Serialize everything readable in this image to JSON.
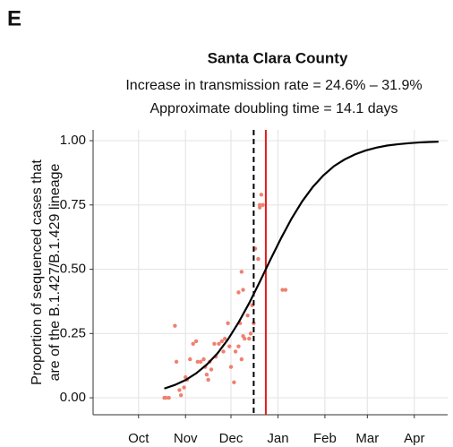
{
  "chart_data": {
    "type": "scatter",
    "panel_label": "E",
    "title": "Santa Clara County",
    "subtitle": [
      "Increase in transmission rate = 24.6% – 31.9%",
      "Approximate doubling time = 14.1 days"
    ],
    "y_label": [
      "Proportion of sequenced cases that",
      "are of the B.1.427/B.1.429 lineage"
    ],
    "xlim": [
      -30,
      204
    ],
    "ylim": [
      -0.066,
      1.042
    ],
    "xticks": [
      {
        "value": 0,
        "label": "Oct"
      },
      {
        "value": 31,
        "label": "Nov"
      },
      {
        "value": 61,
        "label": "Dec"
      },
      {
        "value": 92,
        "label": "Jan"
      },
      {
        "value": 123,
        "label": "Feb"
      },
      {
        "value": 151,
        "label": "Mar"
      },
      {
        "value": 182,
        "label": "Apr"
      }
    ],
    "yticks": [
      {
        "value": 0,
        "label": "0.00"
      },
      {
        "value": 0.25,
        "label": "0.25"
      },
      {
        "value": 0.5,
        "label": "0.50"
      },
      {
        "value": 0.75,
        "label": "0.75"
      },
      {
        "value": 1,
        "label": "1.00"
      }
    ],
    "grid": true,
    "points": {
      "color": "#f08070",
      "x": [
        17,
        18,
        20,
        24,
        25,
        27,
        28,
        30,
        31,
        32,
        34,
        36,
        38,
        39,
        41,
        43,
        44,
        45,
        46,
        47,
        48,
        50,
        51,
        53,
        55,
        56,
        57,
        59,
        60,
        61,
        63,
        64,
        66,
        67,
        68,
        69,
        70,
        72,
        73,
        74,
        75,
        66,
        68,
        69,
        76,
        77,
        79,
        80,
        81,
        82,
        80,
        95,
        97
      ],
      "values": [
        0,
        0,
        0,
        0.28,
        0.14,
        0.03,
        0.01,
        0.04,
        0.08,
        0.07,
        0.15,
        0.21,
        0.22,
        0.14,
        0.14,
        0.15,
        0.12,
        0.09,
        0.07,
        0.14,
        0.11,
        0.21,
        0.16,
        0.21,
        0.22,
        0.18,
        0.23,
        0.29,
        0.2,
        0.12,
        0.06,
        0.18,
        0.2,
        0.29,
        0.15,
        0.24,
        0.23,
        0.32,
        0.23,
        0.25,
        0.36,
        0.41,
        0.49,
        0.42,
        0.29,
        0.58,
        0.54,
        0.74,
        0.79,
        0.75,
        0.75,
        0.42,
        0.42
      ]
    },
    "fit": {
      "color": "#000000",
      "x": [
        17,
        24,
        31,
        38,
        45,
        52,
        59,
        66,
        73,
        80,
        84,
        87,
        94,
        101,
        108,
        115,
        122,
        129,
        136,
        143,
        150,
        157,
        164,
        171,
        178,
        185,
        192,
        198
      ],
      "values": [
        0.036,
        0.05,
        0.069,
        0.095,
        0.129,
        0.172,
        0.227,
        0.293,
        0.368,
        0.451,
        0.5,
        0.537,
        0.62,
        0.697,
        0.764,
        0.82,
        0.865,
        0.901,
        0.927,
        0.947,
        0.962,
        0.973,
        0.981,
        0.986,
        0.99,
        0.993,
        0.995,
        0.996
      ]
    },
    "reference_lines": [
      {
        "x": 76,
        "color": "#000000",
        "style": "dashed"
      },
      {
        "x": 84,
        "color": "#e41a1c",
        "style": "solid"
      }
    ]
  }
}
